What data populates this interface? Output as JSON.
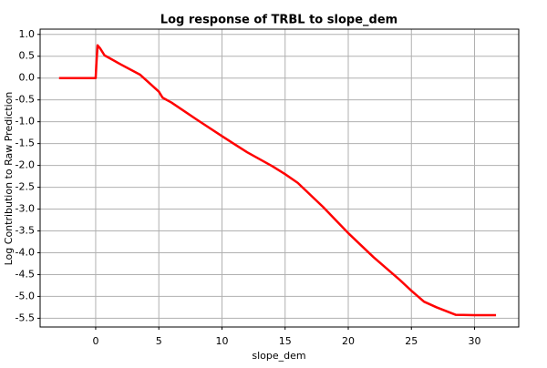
{
  "chart_data": {
    "type": "line",
    "title": "Log response of TRBL to slope_dem",
    "x_label": "slope_dem",
    "y_label": "Log Contribution to Raw Prediction",
    "x": [
      -2.9,
      -1.5,
      0,
      0.05,
      0.15,
      0.35,
      0.7,
      2,
      3.5,
      5,
      5.3,
      6,
      8,
      10,
      12,
      14,
      15,
      16,
      18,
      20,
      22,
      24,
      25,
      26,
      27,
      28.5,
      30,
      31.7
    ],
    "series": [
      {
        "name": "TRBL",
        "color": "#ff0000",
        "values": [
          0,
          0,
          0,
          0.3,
          0.75,
          0.68,
          0.52,
          0.31,
          0.08,
          -0.31,
          -0.45,
          -0.56,
          -0.95,
          -1.33,
          -1.7,
          -2.02,
          -2.2,
          -2.4,
          -2.95,
          -3.55,
          -4.1,
          -4.6,
          -4.87,
          -5.12,
          -5.25,
          -5.42,
          -5.43,
          -5.43
        ]
      }
    ],
    "xlim": [
      -4.4,
      33.5
    ],
    "ylim": [
      -5.7,
      1.12
    ],
    "xticks": [
      0,
      5,
      10,
      15,
      20,
      25,
      30
    ],
    "yticks": [
      {
        "value": 1,
        "label": "1.0"
      },
      0.5,
      {
        "value": 0,
        "label": "0.0"
      },
      -0.5,
      {
        "value": -1,
        "label": "-1.0"
      },
      -1.5,
      {
        "value": -2,
        "label": "-2.0"
      },
      -2.5,
      {
        "value": -3,
        "label": "-3.0"
      },
      -3.5,
      {
        "value": -4,
        "label": "-4.0"
      },
      -4.5,
      {
        "value": -5,
        "label": "-5.0"
      },
      -5.5
    ],
    "grid": true
  }
}
